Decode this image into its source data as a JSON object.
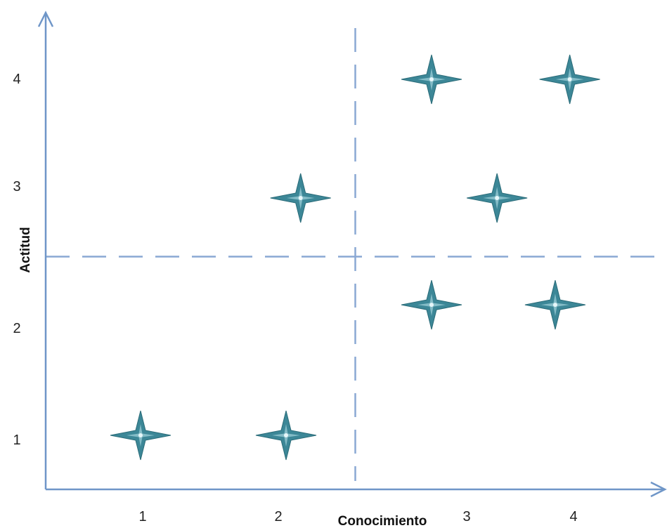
{
  "chart_data": {
    "type": "scatter",
    "xlabel": "Conocimiento",
    "ylabel": "Actitud",
    "x_ticks": [
      "1",
      "2",
      "3",
      "4"
    ],
    "y_ticks": [
      "1",
      "2",
      "3",
      "4"
    ],
    "xlim": [
      0.2,
      4.6
    ],
    "ylim": [
      0.6,
      4.6
    ],
    "grid": false,
    "quadrant_dividers": {
      "x": 2.5,
      "y": 2.5
    },
    "marker": "four-point-star",
    "series": [
      {
        "points": [
          {
            "x": 1.0,
            "y": 1.0
          },
          {
            "x": 2.0,
            "y": 1.0
          },
          {
            "x": 2.1,
            "y": 3.0
          },
          {
            "x": 3.0,
            "y": 4.0
          },
          {
            "x": 3.45,
            "y": 3.0
          },
          {
            "x": 3.95,
            "y": 4.0
          },
          {
            "x": 3.0,
            "y": 2.1
          },
          {
            "x": 3.85,
            "y": 2.1
          }
        ]
      }
    ],
    "colors": {
      "axis": "#6f96c8",
      "divider": "#8aa8d4",
      "marker_fill": "#3c8797",
      "marker_highlight": "#bfe8ef"
    }
  }
}
